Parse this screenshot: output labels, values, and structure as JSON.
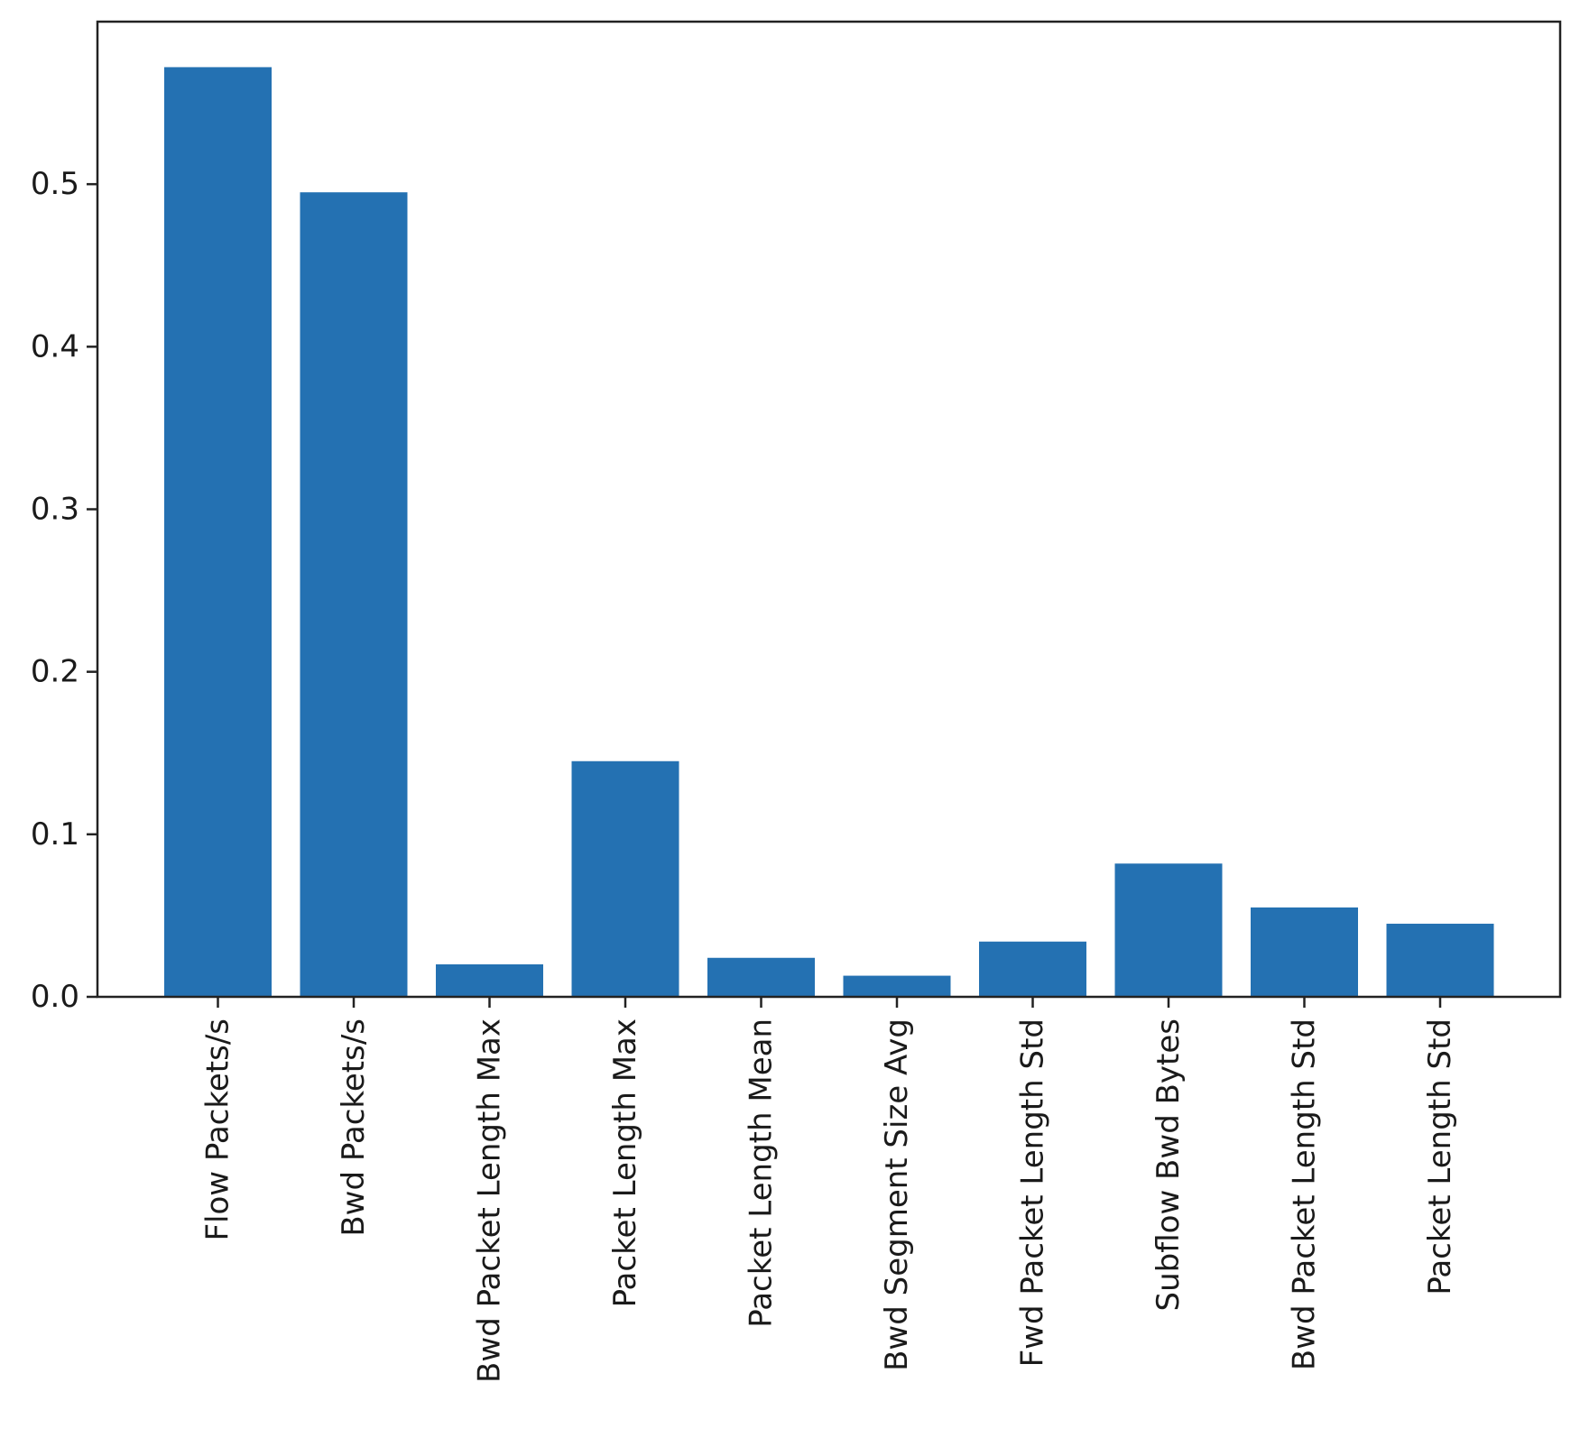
{
  "chart_data": {
    "type": "bar",
    "title": "",
    "xlabel": "",
    "ylabel": "",
    "categories": [
      "Flow Packets/s",
      "Bwd Packets/s",
      "Bwd Packet Length Max",
      "Packet Length Max",
      "Packet Length Mean",
      "Bwd Segment Size Avg",
      "Fwd Packet Length Std",
      "Subflow Bwd Bytes",
      "Bwd Packet Length Std",
      "Packet Length Std"
    ],
    "values": [
      0.572,
      0.495,
      0.02,
      0.145,
      0.024,
      0.013,
      0.034,
      0.082,
      0.055,
      0.045
    ],
    "ylim": [
      0.0,
      0.6
    ],
    "yticks": [
      0.0,
      0.1,
      0.2,
      0.3,
      0.4,
      0.5
    ],
    "ytick_labels": [
      "0.0",
      "0.1",
      "0.2",
      "0.3",
      "0.4",
      "0.5"
    ],
    "grid": false,
    "legend": "none",
    "bar_color": "#2471b2",
    "axis_color": "#222222"
  }
}
